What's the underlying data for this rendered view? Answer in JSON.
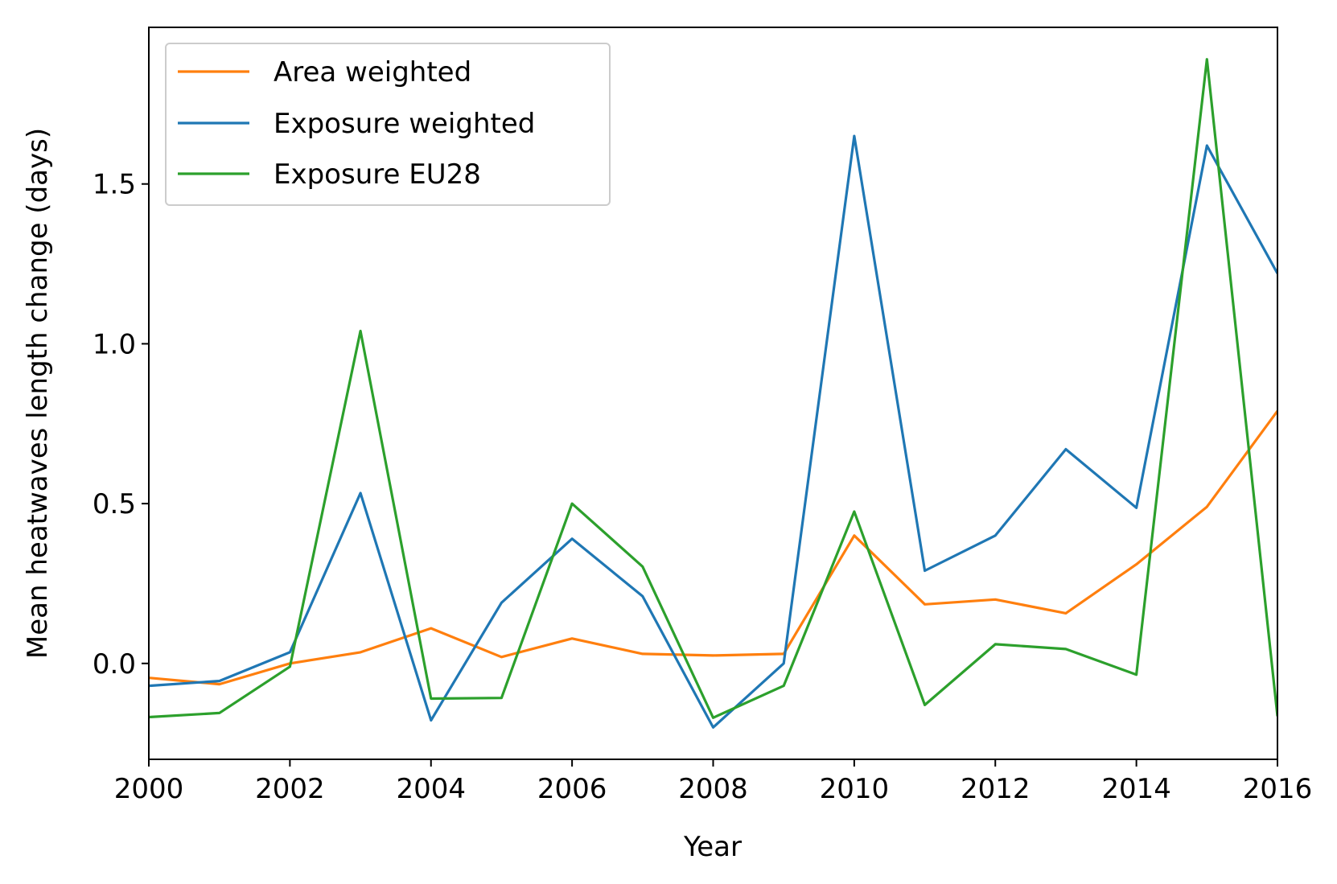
{
  "chart_data": {
    "type": "line",
    "title": "",
    "xlabel": "Year",
    "ylabel": "Mean heatwaves length change (days)",
    "xlim": [
      2000,
      2016
    ],
    "ylim": [
      -0.3,
      1.99
    ],
    "x_ticks": [
      2000,
      2002,
      2004,
      2006,
      2008,
      2010,
      2012,
      2014,
      2016
    ],
    "y_ticks": [
      0.0,
      0.5,
      1.0,
      1.5
    ],
    "y_tick_labels": [
      "0.0",
      "0.5",
      "1.0",
      "1.5"
    ],
    "grid": false,
    "legend_position": "upper-left",
    "x": [
      2000,
      2001,
      2002,
      2003,
      2004,
      2005,
      2006,
      2007,
      2008,
      2009,
      2010,
      2011,
      2012,
      2013,
      2014,
      2015,
      2016
    ],
    "series": [
      {
        "name": "Area weighted",
        "color": "#ff7f0e",
        "values": [
          -0.045,
          -0.065,
          0.0,
          0.035,
          0.11,
          0.02,
          0.078,
          0.03,
          0.025,
          0.03,
          0.4,
          0.185,
          0.2,
          0.157,
          0.31,
          0.49,
          0.79
        ]
      },
      {
        "name": "Exposure weighted",
        "color": "#1f77b4",
        "values": [
          -0.07,
          -0.055,
          0.035,
          0.533,
          -0.178,
          0.19,
          0.39,
          0.21,
          -0.2,
          0.0,
          1.65,
          0.29,
          0.4,
          0.67,
          0.487,
          1.62,
          1.22
        ]
      },
      {
        "name": "Exposure EU28",
        "color": "#2ca02c",
        "values": [
          -0.168,
          -0.155,
          -0.01,
          1.04,
          -0.11,
          -0.108,
          0.5,
          0.303,
          -0.17,
          -0.07,
          0.475,
          -0.13,
          0.06,
          0.045,
          -0.035,
          1.89,
          -0.165
        ]
      }
    ]
  }
}
